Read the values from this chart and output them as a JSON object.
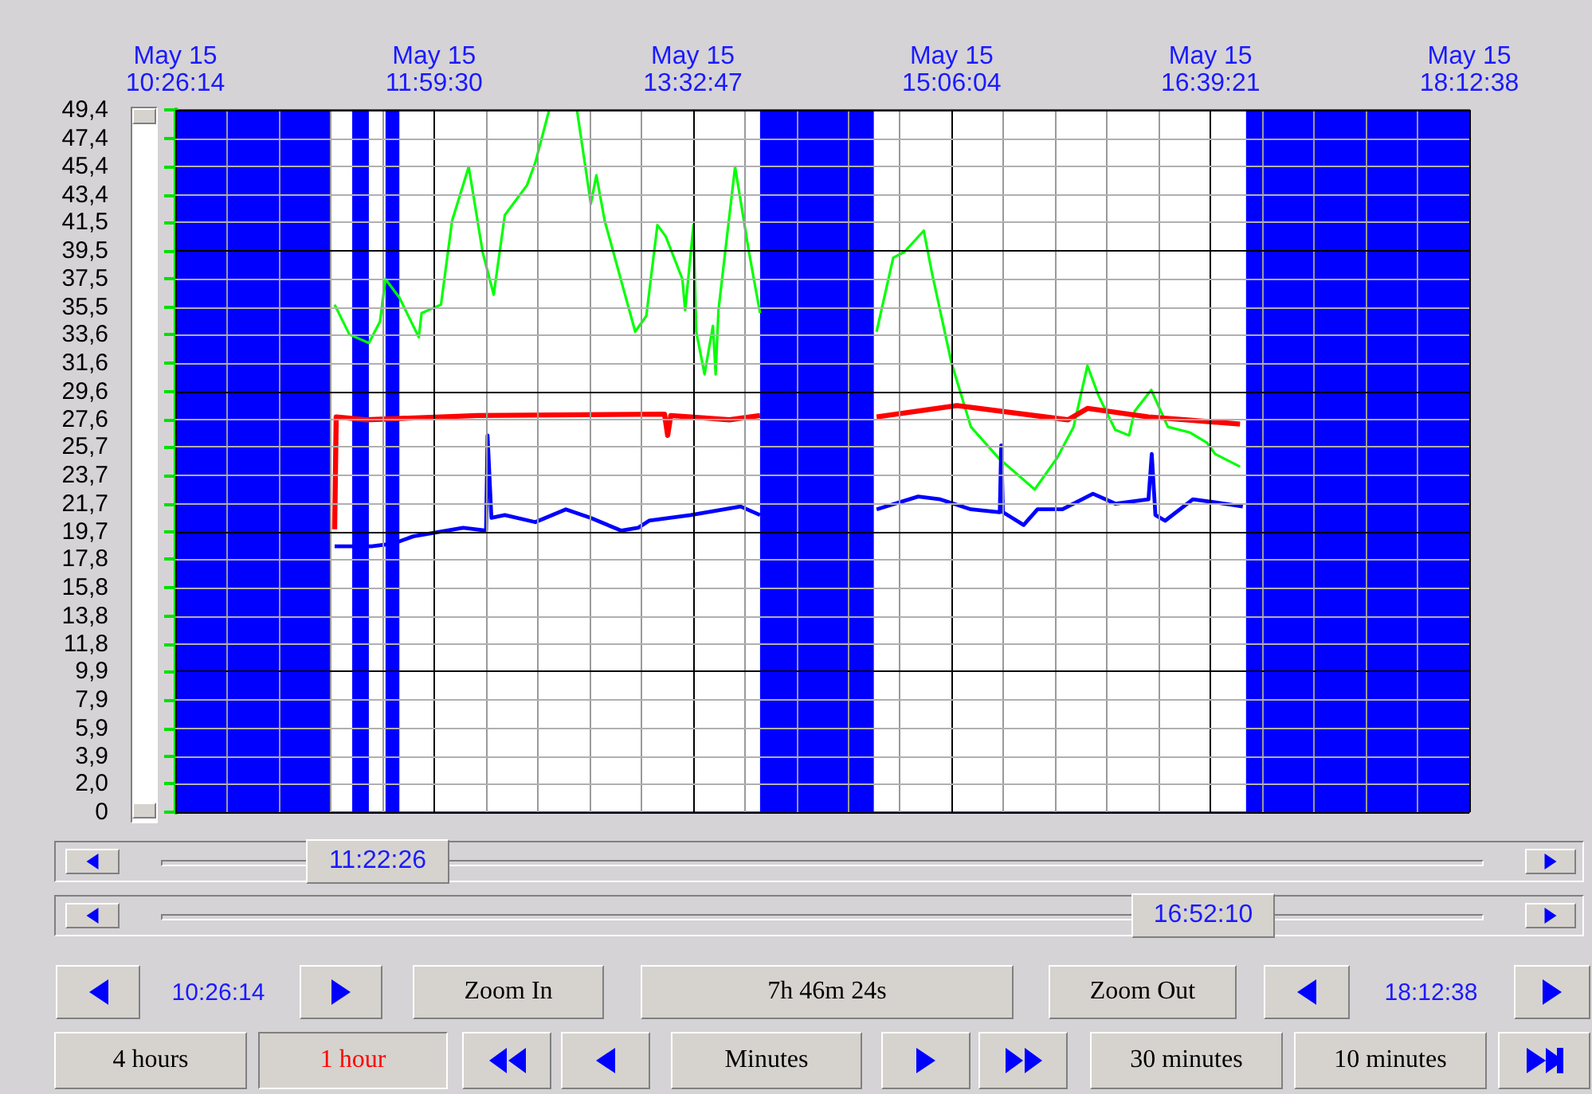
{
  "chart_data": {
    "type": "line",
    "grid": true,
    "xlim": [
      "--05-15T10:26:14",
      "--05-15T18:12:38"
    ],
    "xticks": [
      {
        "value": "--05-15T10:26:14",
        "label": "May 15\n10:26:14"
      },
      {
        "value": "--05-15T10:44:53",
        "label": null
      },
      {
        "value": "--05-15T11:03:33",
        "label": null
      },
      {
        "value": "--05-15T11:22:12",
        "label": null
      },
      {
        "value": "--05-15T11:40:51",
        "label": null
      },
      {
        "value": "--05-15T11:59:30",
        "label": "May 15\n11:59:30"
      },
      {
        "value": "--05-15T12:18:09",
        "label": null
      },
      {
        "value": "--05-15T12:36:49",
        "label": null
      },
      {
        "value": "--05-15T12:55:28",
        "label": null
      },
      {
        "value": "--05-15T13:14:08",
        "label": null
      },
      {
        "value": "--05-15T13:32:47",
        "label": "May 15\n13:32:47"
      },
      {
        "value": "--05-15T13:51:26",
        "label": null
      },
      {
        "value": "--05-15T14:10:06",
        "label": null
      },
      {
        "value": "--05-15T14:28:45",
        "label": null
      },
      {
        "value": "--05-15T14:47:25",
        "label": null
      },
      {
        "value": "--05-15T15:06:04",
        "label": "May 15\n15:06:04"
      },
      {
        "value": "--05-15T15:24:43",
        "label": null
      },
      {
        "value": "--05-15T15:43:23",
        "label": null
      },
      {
        "value": "--05-15T16:02:02",
        "label": null
      },
      {
        "value": "--05-15T16:20:42",
        "label": null
      },
      {
        "value": "--05-15T16:39:21",
        "label": "May 15\n16:39:21"
      },
      {
        "value": "--05-15T16:58:00",
        "label": null
      },
      {
        "value": "--05-15T17:16:40",
        "label": null
      },
      {
        "value": "--05-15T17:35:19",
        "label": null
      },
      {
        "value": "--05-15T17:53:59",
        "label": null
      },
      {
        "value": "--05-15T18:12:38",
        "label": "May 15\n18:12:38"
      }
    ],
    "ylim": [
      0,
      49.4
    ],
    "yticks": [
      0,
      {
        "value": 2.0,
        "label": "2,0"
      },
      {
        "value": 3.9,
        "label": "3,9"
      },
      {
        "value": 5.9,
        "label": "5,9"
      },
      {
        "value": 7.9,
        "label": "7,9"
      },
      {
        "value": 9.9,
        "label": "9,9"
      },
      {
        "value": 11.8,
        "label": "11,8"
      },
      {
        "value": 13.8,
        "label": "13,8"
      },
      {
        "value": 15.8,
        "label": "15,8"
      },
      {
        "value": 17.8,
        "label": "17,8"
      },
      {
        "value": 19.7,
        "label": "19,7"
      },
      {
        "value": 21.7,
        "label": "21,7"
      },
      {
        "value": 23.7,
        "label": "23,7"
      },
      {
        "value": 25.7,
        "label": "25,7"
      },
      {
        "value": 27.6,
        "label": "27,6"
      },
      {
        "value": 29.6,
        "label": "29,6"
      },
      {
        "value": 31.6,
        "label": "31,6"
      },
      {
        "value": 33.6,
        "label": "33,6"
      },
      {
        "value": 35.5,
        "label": "35,5"
      },
      {
        "value": 37.5,
        "label": "37,5"
      },
      {
        "value": 39.5,
        "label": "39,5"
      },
      {
        "value": 41.5,
        "label": "41,5"
      },
      {
        "value": 43.4,
        "label": "43,4"
      },
      {
        "value": 45.4,
        "label": "45,4"
      },
      {
        "value": 47.4,
        "label": "47,4"
      },
      {
        "value": 49.4,
        "label": "49,4"
      }
    ],
    "bands": [
      {
        "axis": "x",
        "from": "--05-15T10:26:14",
        "to": "--05-15T11:22:26",
        "color": "#0000ff"
      },
      {
        "axis": "x",
        "from": "--05-15T11:30:00",
        "to": "--05-15T11:36:00",
        "color": "#0000ff"
      },
      {
        "axis": "x",
        "from": "--05-15T11:42:00",
        "to": "--05-15T11:47:00",
        "color": "#0000ff"
      },
      {
        "axis": "x",
        "from": "--05-15T13:57:00",
        "to": "--05-15T14:38:00",
        "color": "#0000ff"
      },
      {
        "axis": "x",
        "from": "--05-15T16:52:10",
        "to": "--05-15T18:12:38",
        "color": "#0000ff"
      }
    ],
    "series": [
      {
        "color": "#00ff00",
        "x": [
          "--05-15T11:23:40",
          "--05-15T11:29",
          "--05-15T11:36",
          "--05-15T11:40",
          "--05-15T11:42",
          "--05-15T11:47",
          "--05-15T11:54",
          "--05-15T11:55",
          "--05-15T12:02",
          "--05-15T12:06",
          "--05-15T12:12",
          "--05-15T12:17",
          "--05-15T12:21",
          "--05-15T12:25",
          "--05-15T12:33",
          "--05-15T12:36",
          "--05-15T12:41",
          "--05-15T12:45",
          "--05-15T12:51",
          "--05-15T12:56",
          "--05-15T12:58",
          "--05-15T13:01",
          "--05-15T13:12",
          "--05-15T13:16",
          "--05-15T13:20",
          "--05-15T13:23",
          "--05-15T13:29",
          "--05-15T13:30",
          "--05-15T13:33",
          "--05-15T13:34",
          "--05-15T13:37",
          "--05-15T13:40",
          "--05-15T13:41",
          "--05-15T13:42",
          "--05-15T13:48",
          "--05-15T13:53",
          "--05-15T13:57",
          "--05-15T14:18",
          "--05-15T14:39",
          "--05-15T14:45",
          "--05-15T14:49",
          "--05-15T14:56",
          "--05-15T14:59",
          "--05-15T15:06",
          "--05-15T15:13",
          "--05-15T15:23",
          "--05-15T15:36",
          "--05-15T15:44",
          "--05-15T15:50",
          "--05-15T15:55",
          "--05-15T15:59",
          "--05-15T16:05",
          "--05-15T16:10",
          "--05-15T16:12",
          "--05-15T16:18",
          "--05-15T16:24",
          "--05-15T16:32",
          "--05-15T16:38",
          "--05-15T16:41",
          "--05-15T16:50"
        ],
        "values": [
          35.7,
          33.6,
          33.0,
          34.5,
          37.5,
          36.2,
          33.4,
          35.1,
          35.7,
          41.6,
          45.4,
          39.4,
          36.4,
          42.0,
          44.1,
          45.7,
          49.4,
          null,
          49.4,
          42.8,
          44.8,
          41.6,
          33.8,
          34.9,
          41.3,
          40.5,
          37.5,
          35.3,
          41.3,
          33.8,
          30.8,
          34.2,
          30.8,
          35.3,
          45.4,
          39.4,
          35.1,
          null,
          33.8,
          39.0,
          39.4,
          40.9,
          37.9,
          31.6,
          27.1,
          24.9,
          22.7,
          24.9,
          27.1,
          31.4,
          29.3,
          26.9,
          26.5,
          28.2,
          29.7,
          27.1,
          26.7,
          26.0,
          25.2,
          24.3
        ]
      },
      {
        "color": "#ff0000",
        "x": [
          "--05-15T11:23:40",
          "--05-15T11:24:14",
          "--05-15T11:35",
          "--05-15T12:15",
          "--05-15T13:22:34",
          "--05-15T13:23:42",
          "--05-15T13:24:50",
          "--05-15T13:46",
          "--05-15T13:57",
          "--05-15T14:18",
          "--05-15T14:39",
          "--05-15T15:08",
          "--05-15T15:48",
          "--05-15T15:55",
          "--05-15T16:17",
          "--05-15T16:50"
        ],
        "values": [
          19.9,
          27.8,
          27.6,
          27.9,
          28.0,
          26.5,
          27.9,
          27.6,
          27.9,
          null,
          27.8,
          28.6,
          27.6,
          28.4,
          27.8,
          27.3
        ]
      },
      {
        "color": "#0000ff",
        "x": [
          "--05-15T11:23:40",
          "--05-15T11:37",
          "--05-15T11:45",
          "--05-15T11:52",
          "--05-15T12:10",
          "--05-15T12:18:14",
          "--05-15T12:18:47",
          "--05-15T12:20:10",
          "--05-15T12:25",
          "--05-15T12:36",
          "--05-15T12:47",
          "--05-15T12:56",
          "--05-15T13:07",
          "--05-15T13:13",
          "--05-15T13:17",
          "--05-15T13:32",
          "--05-15T13:50",
          "--05-15T13:57",
          "--05-15T14:18",
          "--05-15T14:39",
          "--05-15T14:54",
          "--05-15T15:02",
          "--05-15T15:13",
          "--05-15T15:23:24",
          "--05-15T15:23:56",
          "--05-15T15:24:32",
          "--05-15T15:32",
          "--05-15T15:37",
          "--05-15T15:46",
          "--05-15T15:57",
          "--05-15T16:05",
          "--05-15T16:17",
          "--05-15T16:18:11",
          "--05-15T16:19:30",
          "--05-15T16:23",
          "--05-15T16:33",
          "--05-15T16:41",
          "--05-15T16:51"
        ],
        "values": [
          18.7,
          18.7,
          18.9,
          19.4,
          20.0,
          19.8,
          26.5,
          20.7,
          20.9,
          20.4,
          21.3,
          20.7,
          19.8,
          20.0,
          20.5,
          20.9,
          21.5,
          20.9,
          null,
          21.3,
          22.2,
          22.0,
          21.3,
          21.1,
          25.8,
          21.1,
          20.2,
          21.3,
          21.3,
          22.4,
          21.7,
          22.0,
          25.2,
          20.9,
          20.5,
          22.0,
          21.8,
          21.5
        ]
      }
    ],
    "annotations": [
      "11:22:26",
      "16:52:10",
      "10:26:14",
      "Zoom In",
      "7h 46m 24s",
      "Zoom Out",
      "18:12:38",
      "4 hours",
      "1 hour",
      "Minutes",
      "30 minutes",
      "10 minutes"
    ]
  }
}
